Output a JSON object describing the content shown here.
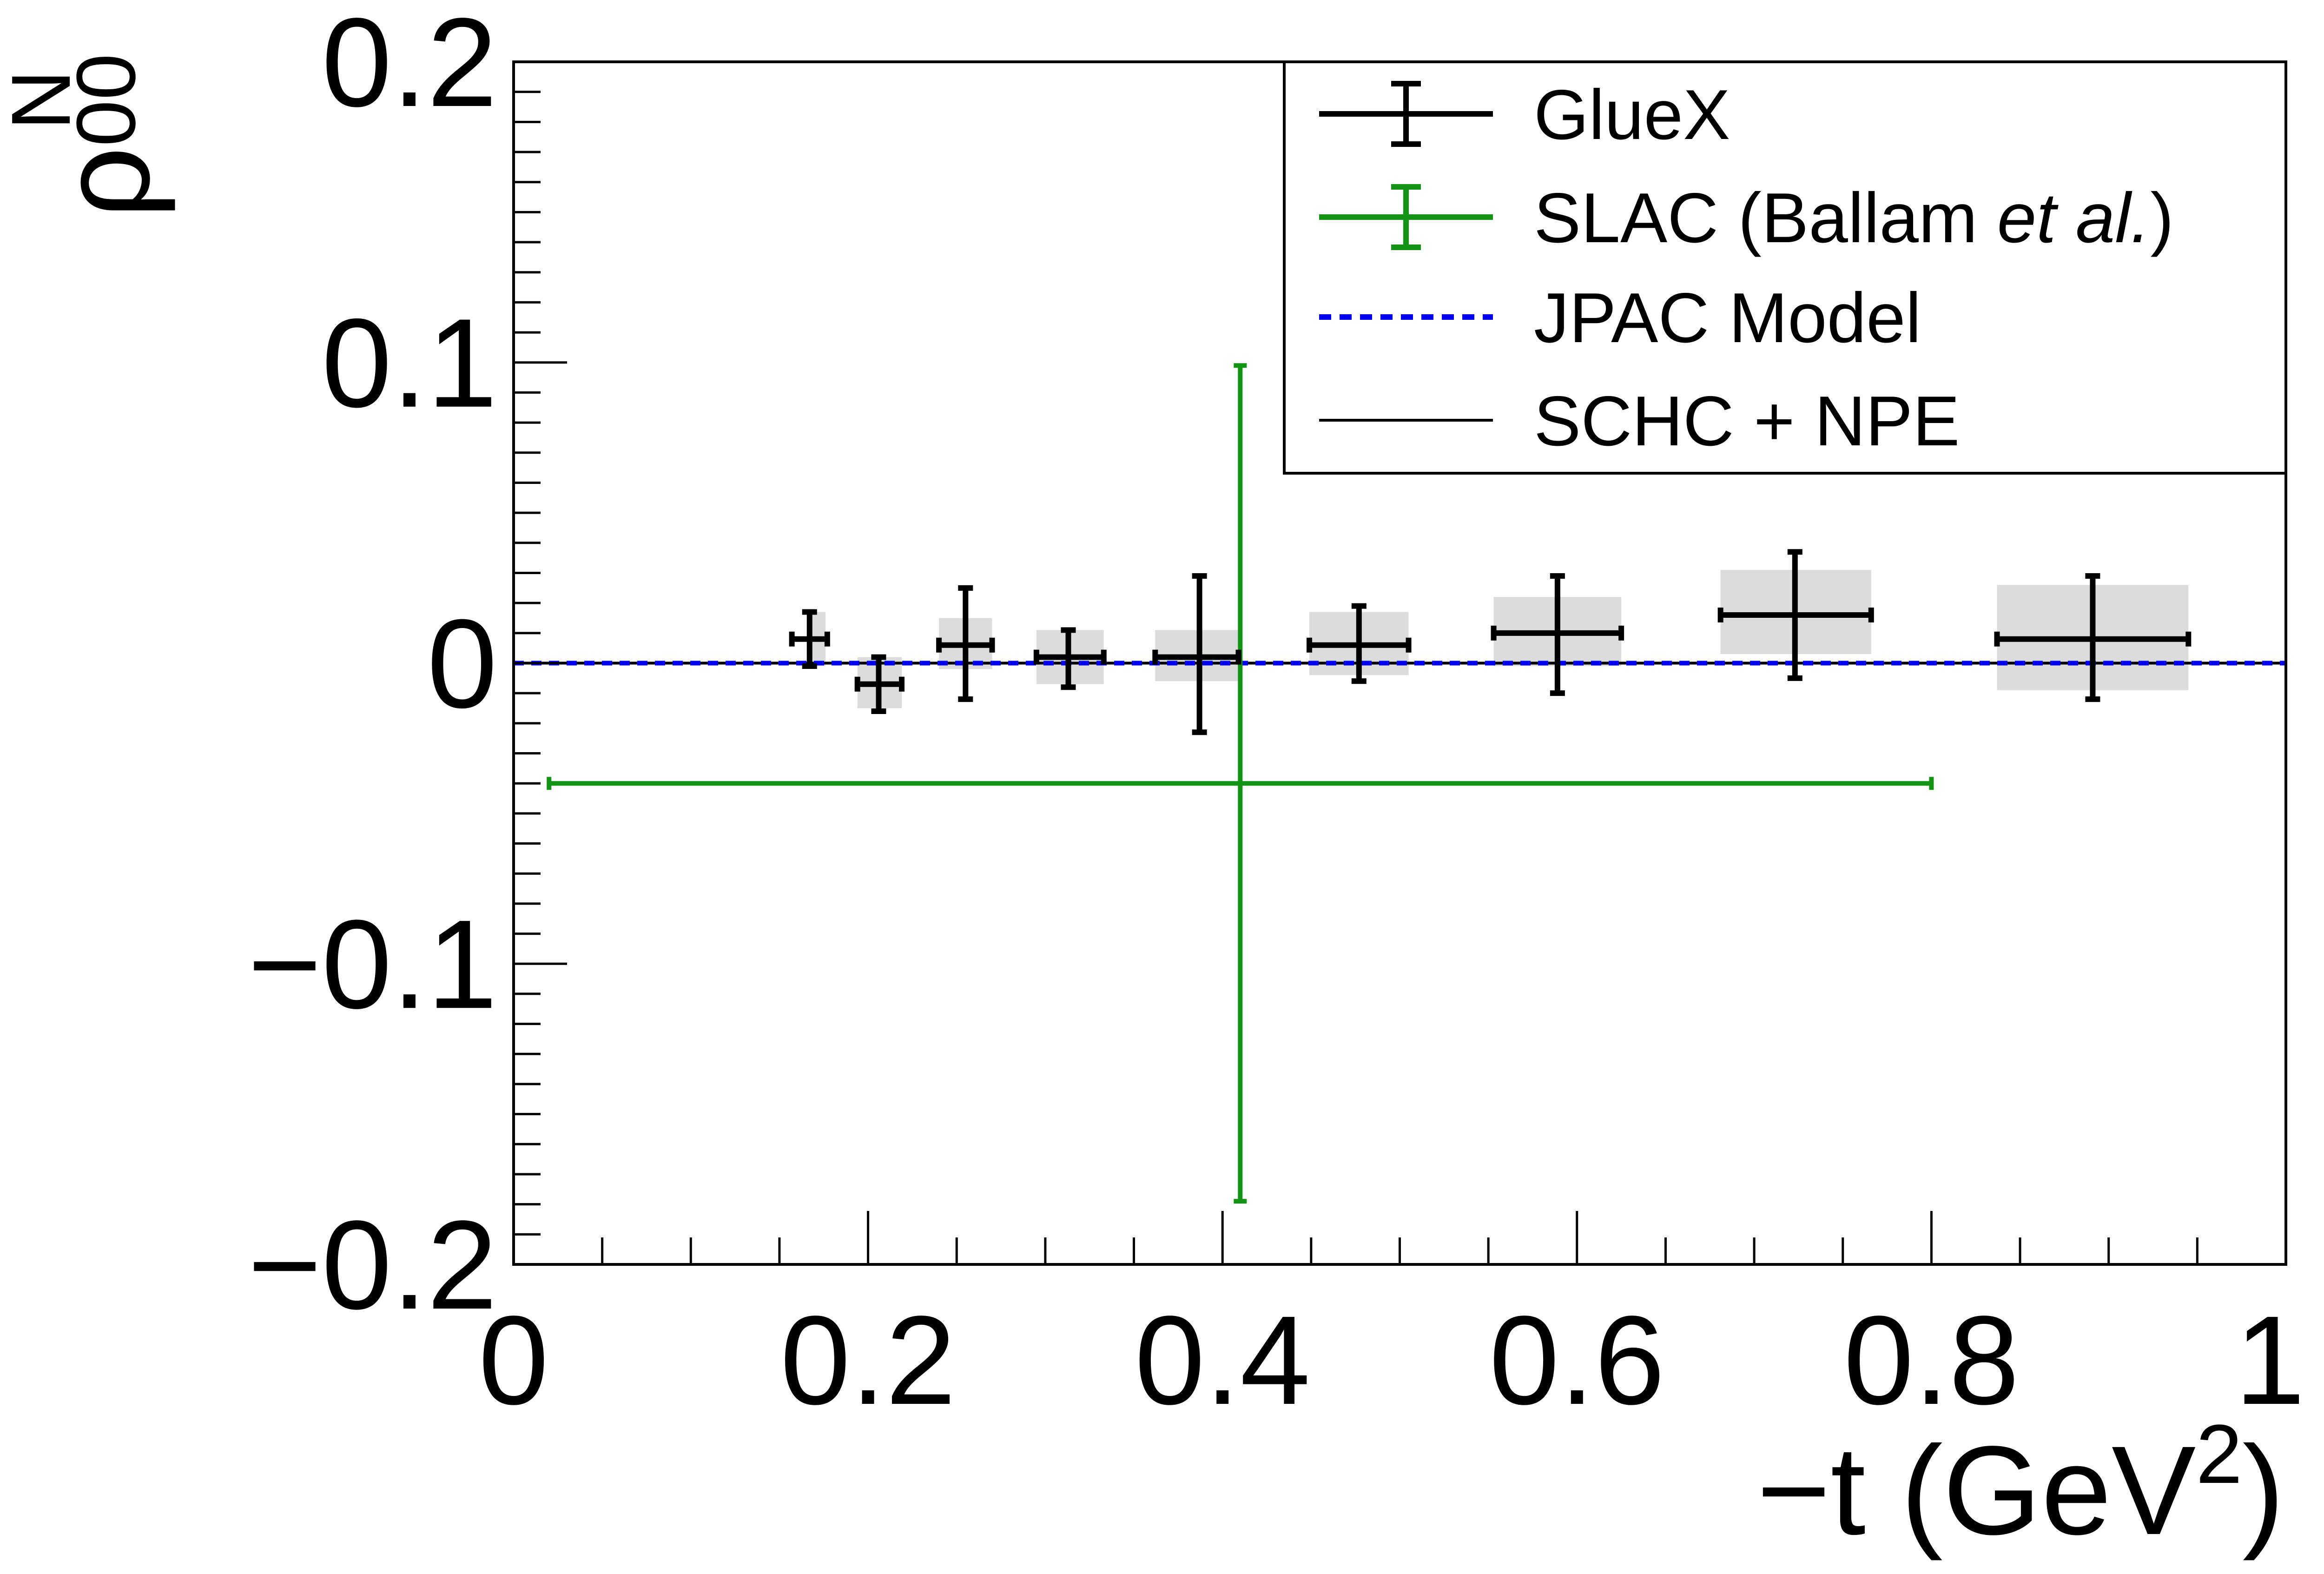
{
  "chart_data": {
    "type": "scatter",
    "xlabel": "−t (GeV",
    "xlabel_sup": "2",
    "xlabel_close": ")",
    "ylabel_base": "ρ",
    "ylabel_sub": "00",
    "ylabel_sup": "N",
    "xlim": [
      0,
      1
    ],
    "ylim": [
      -0.2,
      0.2
    ],
    "x_ticks": [
      0,
      0.2,
      0.4,
      0.6,
      0.8,
      1
    ],
    "x_tick_labels": [
      "0",
      "0.2",
      "0.4",
      "0.6",
      "0.8",
      "1"
    ],
    "y_ticks": [
      -0.2,
      -0.1,
      0,
      0.1,
      0.2
    ],
    "y_tick_labels": [
      "−0.2",
      "−0.1",
      "0",
      "0.1",
      "0.2"
    ],
    "grid": false,
    "legend_placement": "top-right",
    "legend": [
      {
        "label": "GlueX",
        "label_italic": "",
        "label_end": "",
        "style": "errorbar",
        "color": "#000000"
      },
      {
        "label": "SLAC (Ballam ",
        "label_italic": "et al.",
        "label_end": ")",
        "style": "errorbar",
        "color": "#149414"
      },
      {
        "label": "JPAC Model",
        "label_italic": "",
        "label_end": "",
        "style": "dashed",
        "color": "#0000ee"
      },
      {
        "label": "SCHC + NPE",
        "label_italic": "",
        "label_end": "",
        "style": "line",
        "color": "#000000"
      }
    ],
    "series": [
      {
        "name": "GlueX",
        "color": "#000000",
        "points": [
          {
            "x": 0.167,
            "y": 0.008,
            "xlo": 0.157,
            "xhi": 0.177,
            "ylo": -0.001,
            "yhi": 0.017,
            "syslo": 0.167,
            "syshi": 0.176,
            "sysylo": -0.001,
            "sysyhi": 0.017
          },
          {
            "x": 0.206,
            "y": -0.007,
            "xlo": 0.194,
            "xhi": 0.219,
            "ylo": -0.016,
            "yhi": 0.002,
            "syslo": 0.194,
            "syshi": 0.219,
            "sysylo": -0.015,
            "sysyhi": 0.002
          },
          {
            "x": 0.255,
            "y": 0.006,
            "xlo": 0.24,
            "xhi": 0.27,
            "ylo": -0.012,
            "yhi": 0.025,
            "syslo": 0.24,
            "syshi": 0.27,
            "sysylo": -0.002,
            "sysyhi": 0.015
          },
          {
            "x": 0.313,
            "y": 0.002,
            "xlo": 0.295,
            "xhi": 0.333,
            "ylo": -0.008,
            "yhi": 0.011,
            "syslo": 0.295,
            "syshi": 0.333,
            "sysylo": -0.007,
            "sysyhi": 0.011
          },
          {
            "x": 0.387,
            "y": 0.002,
            "xlo": 0.362,
            "xhi": 0.409,
            "ylo": -0.023,
            "yhi": 0.029,
            "syslo": 0.362,
            "syshi": 0.409,
            "sysylo": -0.006,
            "sysyhi": 0.011
          },
          {
            "x": 0.477,
            "y": 0.006,
            "xlo": 0.449,
            "xhi": 0.505,
            "ylo": -0.006,
            "yhi": 0.019,
            "syslo": 0.449,
            "syshi": 0.505,
            "sysylo": -0.004,
            "sysyhi": 0.017
          },
          {
            "x": 0.589,
            "y": 0.01,
            "xlo": 0.553,
            "xhi": 0.625,
            "ylo": -0.01,
            "yhi": 0.029,
            "syslo": 0.553,
            "syshi": 0.625,
            "sysylo": -0.001,
            "sysyhi": 0.022
          },
          {
            "x": 0.723,
            "y": 0.016,
            "xlo": 0.681,
            "xhi": 0.766,
            "ylo": -0.005,
            "yhi": 0.037,
            "syslo": 0.681,
            "syshi": 0.766,
            "sysylo": 0.003,
            "sysyhi": 0.031
          },
          {
            "x": 0.891,
            "y": 0.008,
            "xlo": 0.837,
            "xhi": 0.945,
            "ylo": -0.012,
            "yhi": 0.029,
            "syslo": 0.837,
            "syshi": 0.945,
            "sysylo": -0.009,
            "sysyhi": 0.026
          }
        ]
      },
      {
        "name": "SLAC (Ballam et al.)",
        "color": "#149414",
        "points": [
          {
            "x": 0.41,
            "y": -0.04,
            "xlo": 0.02,
            "xhi": 0.8,
            "ylo": -0.179,
            "yhi": 0.099
          }
        ]
      },
      {
        "name": "JPAC Model",
        "color": "#0000ee",
        "line": {
          "x": [
            0,
            1
          ],
          "y": [
            0,
            0
          ]
        }
      },
      {
        "name": "SCHC + NPE",
        "color": "#000000",
        "line": {
          "x": [
            0,
            1
          ],
          "y": [
            0,
            0
          ]
        }
      }
    ]
  }
}
